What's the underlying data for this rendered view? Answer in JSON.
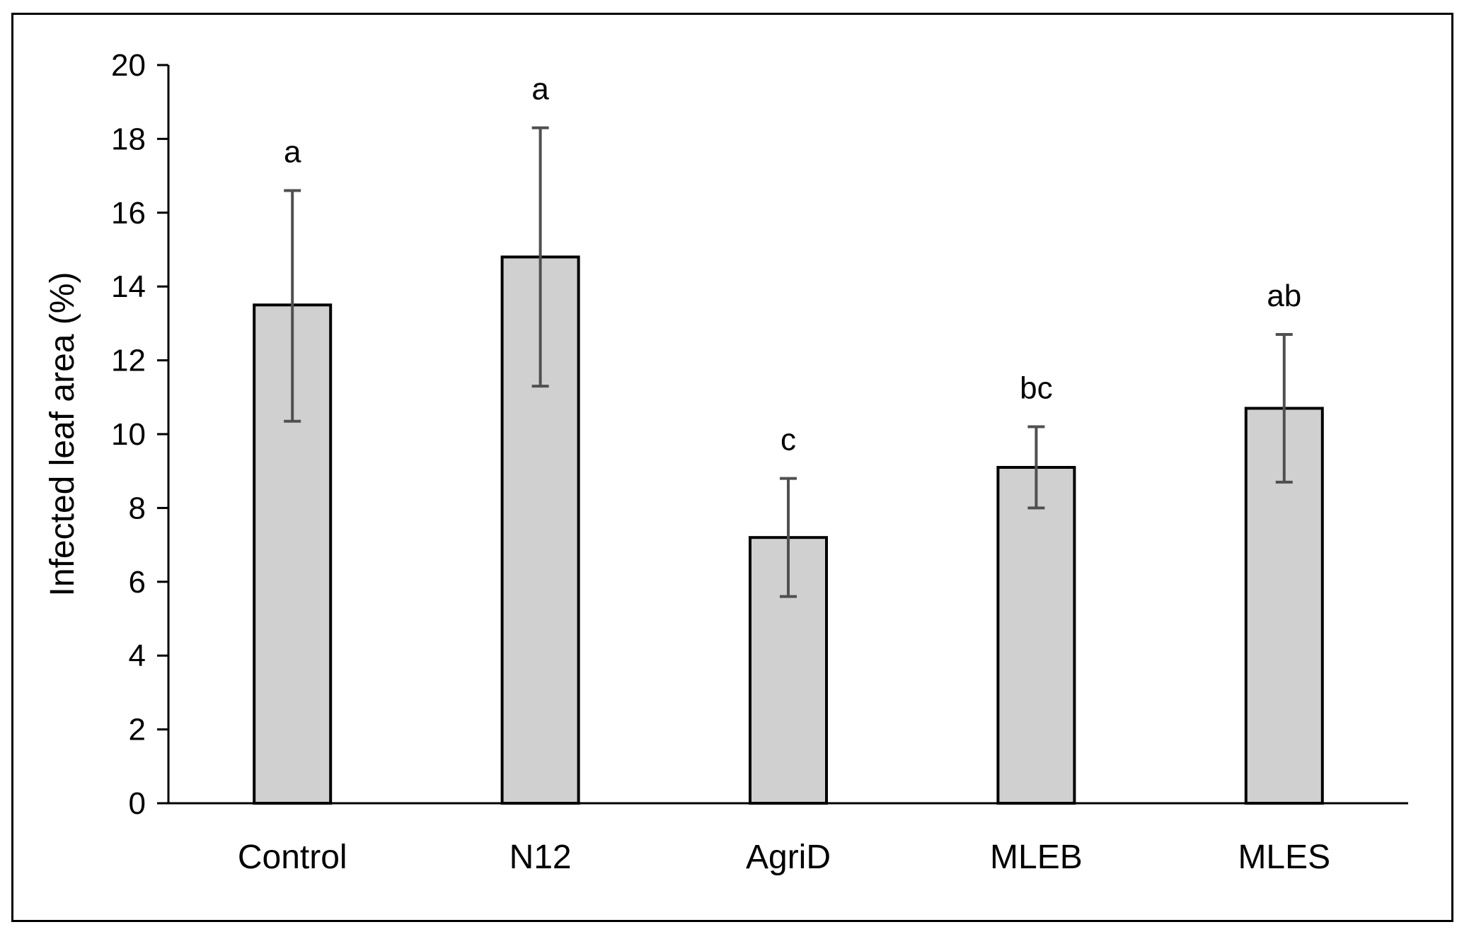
{
  "chart_data": {
    "type": "bar",
    "title": "",
    "xlabel": "",
    "ylabel": "Infected leaf area (%)",
    "ylim": [
      0,
      20
    ],
    "yticks": [
      0,
      2,
      4,
      6,
      8,
      10,
      12,
      14,
      16,
      18,
      20
    ],
    "categories": [
      "Control",
      "N12",
      "AgriD",
      "MLEB",
      "MLES"
    ],
    "values": [
      13.5,
      14.8,
      7.2,
      9.1,
      10.7
    ],
    "error_low": [
      10.35,
      11.3,
      5.6,
      8.0,
      8.7
    ],
    "error_high": [
      16.6,
      18.3,
      8.8,
      10.2,
      12.7
    ],
    "significance": [
      "a",
      "a",
      "c",
      "bc",
      "ab"
    ],
    "grid": false,
    "legend": "none",
    "colors": {
      "bar_fill": "#d0d0d0",
      "bar_stroke": "#000000",
      "error_bar": "#505050",
      "axis": "#000000"
    }
  }
}
